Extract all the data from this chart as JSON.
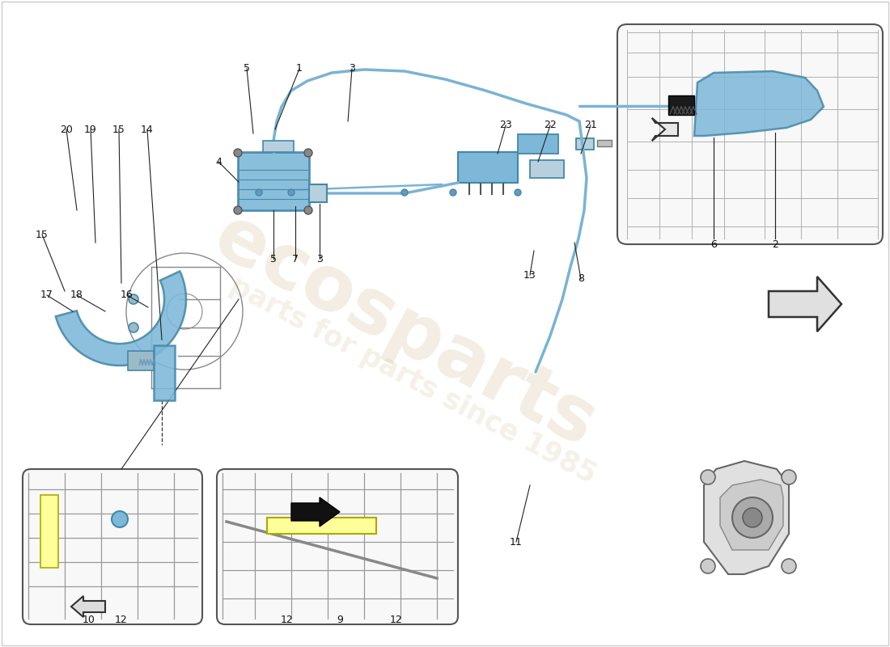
{
  "background": "#ffffff",
  "cable_color": "#7ab3d4",
  "comp_color": "#7db8d8",
  "line_color": "#222222",
  "grey_color": "#888888",
  "wm_color": "#d4c09a",
  "inset_fill": "#f8f8f8",
  "inset_stroke": "#555555",
  "lw_cable": 2.5,
  "lw_comp": 1.5,
  "lw_struct": 1.0,
  "watermark1": "ecosparts",
  "watermark2": "parts for parts since 1985"
}
